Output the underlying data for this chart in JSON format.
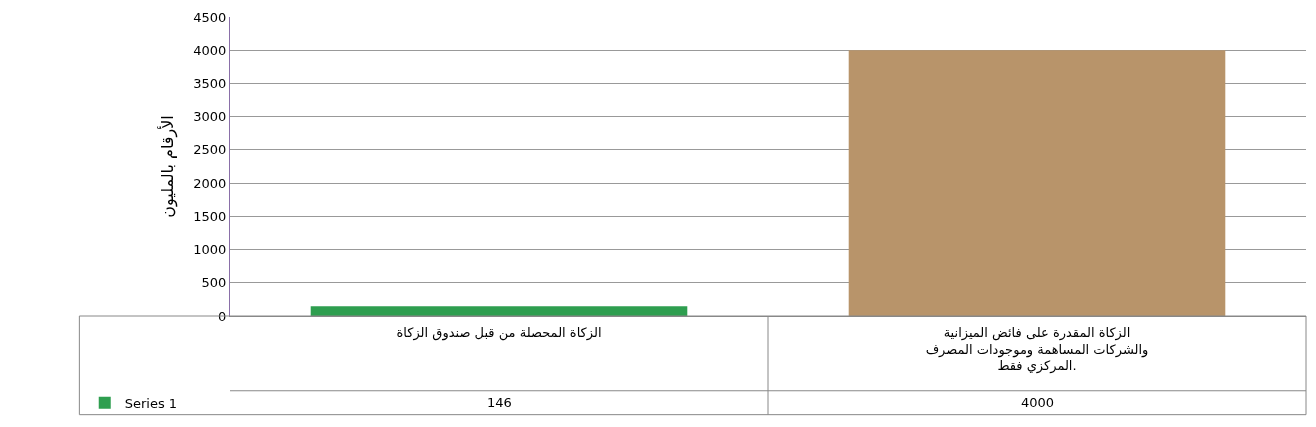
{
  "chart_data": {
    "type": "bar",
    "ylabel": "الأرقام بالمليون",
    "categories": [
      "الزكاة المحصلة من قبل صندوق الزكاة",
      "الزكاة المقدرة على فائض الميزانية والشركات المساهمة وموجودات المصرف المركزي فقط."
    ],
    "series": [
      {
        "name": "Series 1",
        "colors": [
          "#2e9e4f",
          "#b8946a"
        ],
        "values": [
          146,
          4000
        ]
      }
    ],
    "ylim": [
      0,
      4500
    ],
    "yticks": [
      0,
      500,
      1000,
      1500,
      2000,
      2500,
      3000,
      3500,
      4000,
      4500
    ],
    "grid": "y",
    "data_labels": true,
    "legend": "bottom left"
  }
}
